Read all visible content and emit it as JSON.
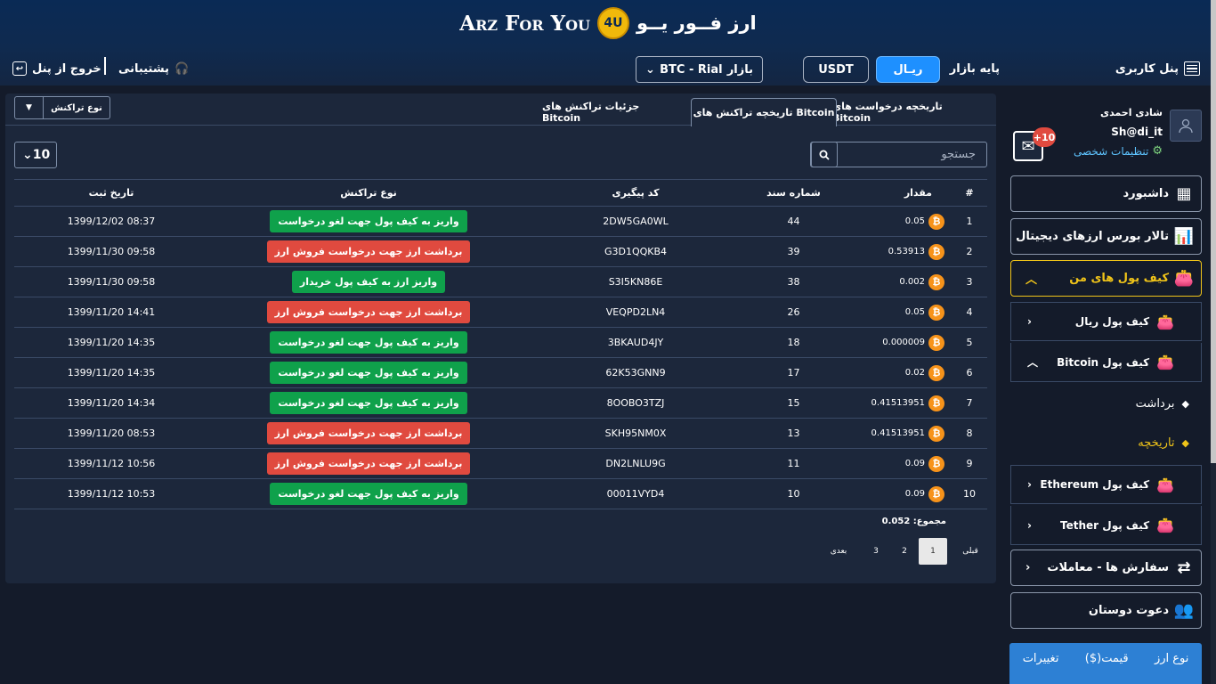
{
  "header": {
    "brand_en": "Arz For You",
    "brand_logo": "4U",
    "brand_fa": "ارز فــور یــو"
  },
  "nav": {
    "panel_label": "پنل کاربری",
    "base_market_label": "پایه بازار",
    "rial_button": "ریـال",
    "usdt_button": "USDT",
    "market_label": "بازار",
    "market_value": "BTC - Rial",
    "support_label": "پشتیبانی",
    "exit_label": "خروج از پنل"
  },
  "tabs": {
    "requests": "تاریخچه درخواست های Bitcoin",
    "history": "تاریخچه تراکنش های Bitcoin",
    "details": "جزئیات تراکنش های Bitcoin",
    "type_filter": "نوع تراکنش"
  },
  "search": {
    "placeholder": "جستجو"
  },
  "per_page": "10",
  "table": {
    "headers": {
      "num": "#",
      "amount": "مقدار",
      "doc": "شماره سند",
      "code": "کد پیگیری",
      "type": "نوع تراکنش",
      "date": "تاریخ ثبت"
    },
    "rows": [
      {
        "num": "1",
        "amount": "0.05",
        "doc": "44",
        "code": "2DW5GA0WL",
        "type": "واریز به کیف پول جهت لغو درخواست",
        "type_color": "green",
        "date": "1399/12/02 08:37"
      },
      {
        "num": "2",
        "amount": "0.53913",
        "doc": "39",
        "code": "G3D1QQKB4",
        "type": "برداشت ارز جهت درخواست فروش ارز",
        "type_color": "red",
        "date": "1399/11/30 09:58"
      },
      {
        "num": "3",
        "amount": "0.002",
        "doc": "38",
        "code": "S3I5KN86E",
        "type": "واریز ارز به کیف پول خریدار",
        "type_color": "green",
        "date": "1399/11/30 09:58"
      },
      {
        "num": "4",
        "amount": "0.05",
        "doc": "26",
        "code": "VEQPD2LN4",
        "type": "برداشت ارز جهت درخواست فروش ارز",
        "type_color": "red",
        "date": "1399/11/20 14:41"
      },
      {
        "num": "5",
        "amount": "0.000009",
        "doc": "18",
        "code": "3BKAUD4JY",
        "type": "واریز به کیف پول جهت لغو درخواست",
        "type_color": "green",
        "date": "1399/11/20 14:35"
      },
      {
        "num": "6",
        "amount": "0.02",
        "doc": "17",
        "code": "62K53GNN9",
        "type": "واریز به کیف پول جهت لغو درخواست",
        "type_color": "green",
        "date": "1399/11/20 14:35"
      },
      {
        "num": "7",
        "amount": "0.41513951",
        "doc": "15",
        "code": "8OOBO3TZJ",
        "type": "واریز به کیف پول جهت لغو درخواست",
        "type_color": "green",
        "date": "1399/11/20 14:34"
      },
      {
        "num": "8",
        "amount": "0.41513951",
        "doc": "13",
        "code": "SKH95NM0X",
        "type": "برداشت ارز جهت درخواست فروش ارز",
        "type_color": "red",
        "date": "1399/11/20 08:53"
      },
      {
        "num": "9",
        "amount": "0.09",
        "doc": "11",
        "code": "DN2LNLU9G",
        "type": "برداشت ارز جهت درخواست فروش ارز",
        "type_color": "red",
        "date": "1399/11/12 10:56"
      },
      {
        "num": "10",
        "amount": "0.09",
        "doc": "10",
        "code": "00011VYD4",
        "type": "واریز به کیف پول جهت لغو درخواست",
        "type_color": "green",
        "date": "1399/11/12 10:53"
      }
    ],
    "total": "مجموع: 0.052"
  },
  "pager": {
    "prev": "قبلی",
    "p1": "1",
    "p2": "2",
    "p3": "3",
    "next": "بعدی"
  },
  "profile": {
    "name": "شادی احمدی",
    "handle": "Sh@di_it",
    "settings": "تنظیمات شخصی",
    "messages_badge": "+10"
  },
  "menu": {
    "dashboard": "داشبورد",
    "exchange": "تالار بورس ارزهای دیجیتال",
    "my_wallets": "کیف پول های من",
    "rial_wallet": "کیف پول ریال",
    "bitcoin_wallet": "کیف پول Bitcoin",
    "withdraw": "برداشت",
    "history": "تاریخچه",
    "ethereum_wallet": "کیف پول Ethereum",
    "tether_wallet": "کیف پول Tether",
    "orders": "سفارش ها - معاملات",
    "invite": "دعوت دوستان"
  },
  "prices": {
    "currency": "نوع ارز",
    "price": "قیمت($)",
    "change": "تغییرات"
  },
  "colors": {
    "accent": "#1e90ff",
    "active": "#f0c419",
    "green": "#0fa14b",
    "red": "#e04a3f"
  }
}
